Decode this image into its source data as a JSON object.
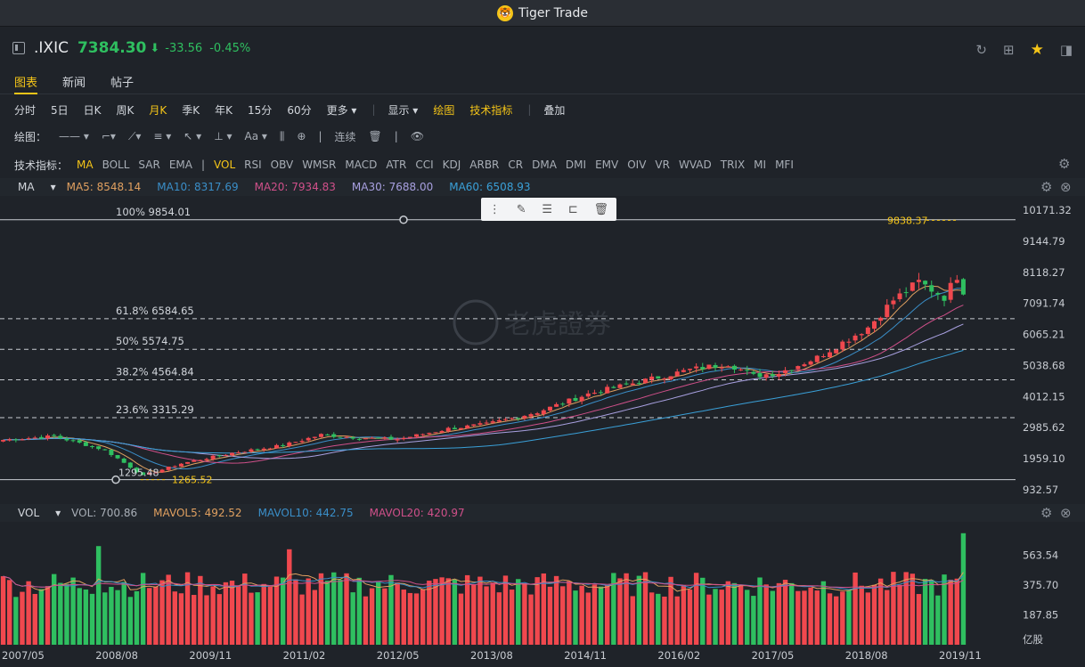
{
  "app": {
    "title": "Tiger Trade"
  },
  "quote": {
    "symbol": ".IXIC",
    "price": "7384.30",
    "arrow": "⬇",
    "change": "-33.56",
    "change_pct": "-0.45%"
  },
  "tabs": [
    "图表",
    "新闻",
    "帖子"
  ],
  "periods": [
    "分时",
    "5日",
    "日K",
    "周K",
    "月K",
    "季K",
    "年K",
    "15分",
    "60分",
    "更多 ▾"
  ],
  "period_active": "月K",
  "period_tools": [
    "显示 ▾",
    "绘图",
    "技术指标",
    "叠加"
  ],
  "draw_label": "绘图：",
  "draw_tools": [
    "—— ▾",
    "⌐▾",
    "⟋▾",
    "≡ ▾",
    "↖ ▾",
    "⊥ ▾",
    "Aa ▾",
    "⫼",
    "⊕",
    "连续",
    "🗑",
    "👁"
  ],
  "indicator_label": "技术指标：",
  "indicators": [
    "MA",
    "BOLL",
    "SAR",
    "EMA",
    "|",
    "VOL",
    "RSI",
    "OBV",
    "WMSR",
    "MACD",
    "ATR",
    "CCI",
    "KDJ",
    "ARBR",
    "CR",
    "DMA",
    "DMI",
    "EMV",
    "OIV",
    "VR",
    "WVAD",
    "TRIX",
    "MI",
    "MFI"
  ],
  "ma_legend": {
    "name": "MA",
    "ma5": "MA5: 8548.14",
    "ma10": "MA10: 8317.69",
    "ma20": "MA20: 7934.83",
    "ma30": "MA30: 7688.00",
    "ma60": "MA60: 6508.93"
  },
  "vol_legend": {
    "name": "VOL",
    "vol": "VOL: 700.86",
    "mavol5": "MAVOL5: 492.52",
    "mavol10": "MAVOL10: 442.75",
    "mavol20": "MAVOL20: 420.97"
  },
  "colors": {
    "up": "#f0484e",
    "down": "#2fbf60",
    "ma5": "#e0a060",
    "ma10": "#3a8ec8",
    "ma20": "#d0508a",
    "ma30": "#a8a0e0",
    "ma60": "#3aa0d8"
  },
  "fib_labels": [
    "100% 9854.01",
    "61.8% 6584.65",
    "50% 5574.75",
    "38.2% 4564.84",
    "23.6% 3315.29"
  ],
  "marks": {
    "high": "9838.37",
    "low": "1265.52",
    "low2": "1295.48"
  },
  "watermark": "老虎證券",
  "chart_data": {
    "type": "candlestick",
    "title": "",
    "y_ticks": [
      "10171.32",
      "9144.79",
      "8118.27",
      "7091.74",
      "6065.21",
      "5038.68",
      "4012.15",
      "2985.62",
      "1959.10",
      "932.57"
    ],
    "vol_ticks": [
      "563.54",
      "375.70",
      "187.85",
      "亿股"
    ],
    "x_ticks": [
      "2007/05",
      "2008/08",
      "2009/11",
      "2011/02",
      "2012/05",
      "2013/08",
      "2014/11",
      "2016/02",
      "2017/05",
      "2018/08",
      "2019/11"
    ],
    "ylim": [
      932.57,
      10171.32
    ],
    "fib_levels": [
      9854.01,
      6584.65,
      5574.75,
      4564.84,
      3315.29,
      1265.52
    ]
  }
}
